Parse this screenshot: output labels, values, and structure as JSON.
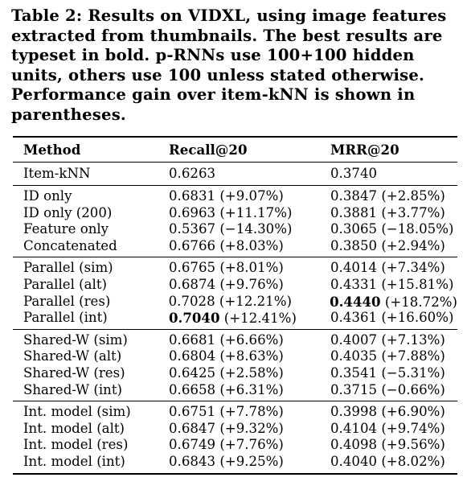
{
  "caption": "Table 2: Results on VIDXL, using image features extracted from thumbnails.  The best results are typeset in bold. p-RNNs use 100+100 hidden units, others use 100 unless stated otherwise. Performance gain over item-kNN is shown in parentheses.",
  "headers": {
    "method": "Method",
    "recall": "Recall@20",
    "mrr": "MRR@20"
  },
  "baseline": {
    "method": "Item-kNN",
    "recall": "0.6263",
    "mrr": "0.3740"
  },
  "groups": [
    {
      "rows": [
        {
          "method": "ID only",
          "recall": "0.6831",
          "recall_gain": " (+9.07%)",
          "mrr": "0.3847",
          "mrr_gain": " (+2.85%)"
        },
        {
          "method": "ID only (200)",
          "recall": "0.6963",
          "recall_gain": " (+11.17%)",
          "mrr": "0.3881",
          "mrr_gain": " (+3.77%)"
        },
        {
          "method": "Feature only",
          "recall": "0.5367",
          "recall_gain": " (−14.30%)",
          "mrr": "0.3065",
          "mrr_gain": " (−18.05%)"
        },
        {
          "method": "Concatenated",
          "recall": "0.6766",
          "recall_gain": " (+8.03%)",
          "mrr": "0.3850",
          "mrr_gain": " (+2.94%)"
        }
      ]
    },
    {
      "rows": [
        {
          "method": "Parallel (sim)",
          "recall": "0.6765",
          "recall_gain": " (+8.01%)",
          "mrr": "0.4014",
          "mrr_gain": " (+7.34%)"
        },
        {
          "method": "Parallel (alt)",
          "recall": "0.6874",
          "recall_gain": " (+9.76%)",
          "mrr": "0.4331",
          "mrr_gain": " (+15.81%)"
        },
        {
          "method": "Parallel (res)",
          "recall": "0.7028",
          "recall_gain": " (+12.21%)",
          "mrr": "0.4440",
          "mrr_gain": " (+18.72%)",
          "mrr_best": true
        },
        {
          "method": "Parallel (int)",
          "recall": "0.7040",
          "recall_gain": " (+12.41%)",
          "mrr": "0.4361",
          "mrr_gain": " (+16.60%)",
          "recall_best": true
        }
      ]
    },
    {
      "rows": [
        {
          "method": "Shared-W (sim)",
          "recall": "0.6681",
          "recall_gain": " (+6.66%)",
          "mrr": "0.4007",
          "mrr_gain": " (+7.13%)"
        },
        {
          "method": "Shared-W (alt)",
          "recall": "0.6804",
          "recall_gain": " (+8.63%)",
          "mrr": "0.4035",
          "mrr_gain": " (+7.88%)"
        },
        {
          "method": "Shared-W (res)",
          "recall": "0.6425",
          "recall_gain": " (+2.58%)",
          "mrr": "0.3541",
          "mrr_gain": " (−5.31%)"
        },
        {
          "method": "Shared-W (int)",
          "recall": "0.6658",
          "recall_gain": " (+6.31%)",
          "mrr": "0.3715",
          "mrr_gain": " (−0.66%)"
        }
      ]
    },
    {
      "rows": [
        {
          "method": "Int. model (sim)",
          "recall": "0.6751",
          "recall_gain": " (+7.78%)",
          "mrr": "0.3998",
          "mrr_gain": " (+6.90%)"
        },
        {
          "method": "Int. model (alt)",
          "recall": "0.6847",
          "recall_gain": " (+9.32%)",
          "mrr": "0.4104",
          "mrr_gain": " (+9.74%)"
        },
        {
          "method": "Int. model (res)",
          "recall": "0.6749",
          "recall_gain": " (+7.76%)",
          "mrr": "0.4098",
          "mrr_gain": " (+9.56%)"
        },
        {
          "method": "Int. model (int)",
          "recall": "0.6843",
          "recall_gain": " (+9.25%)",
          "mrr": "0.4040",
          "mrr_gain": " (+8.02%)"
        }
      ]
    }
  ]
}
